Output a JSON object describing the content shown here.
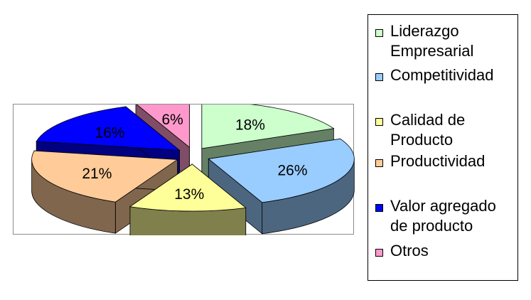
{
  "chart_data": {
    "type": "pie",
    "style": "3d-exploded",
    "categories": [
      "Liderazgo\nEmpresarial",
      "Competitividad",
      "Calidad de\nProducto",
      "Productividad",
      "Valor agregado\nde producto",
      "Otros"
    ],
    "values": [
      18,
      26,
      13,
      21,
      16,
      6
    ],
    "data_labels": [
      "18%",
      "26%",
      "13%",
      "21%",
      "16%",
      "6%"
    ],
    "colors": [
      "#ccffcc",
      "#99ccff",
      "#ffff99",
      "#ffcc99",
      "#0000ff",
      "#ff99cc"
    ],
    "legend_position": "right",
    "title": ""
  }
}
